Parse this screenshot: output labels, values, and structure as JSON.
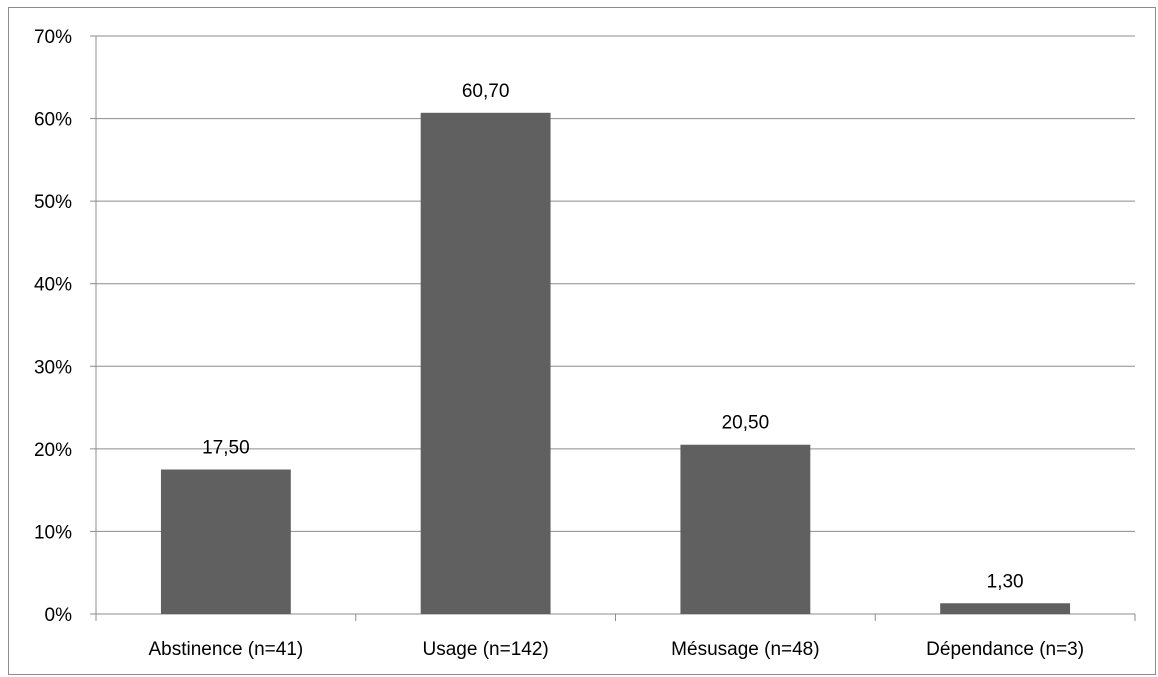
{
  "chart_data": {
    "type": "bar",
    "categories": [
      "Abstinence (n=41)",
      "Usage (n=142)",
      "Mésusage (n=48)",
      "Dépendance (n=3)"
    ],
    "values": [
      17.5,
      60.7,
      20.5,
      1.3
    ],
    "data_labels": [
      "17,50",
      "60,70",
      "20,50",
      "1,30"
    ],
    "ylim": [
      0,
      70
    ],
    "y_ticks": [
      0,
      10,
      20,
      30,
      40,
      50,
      60,
      70
    ],
    "y_tick_labels": [
      "0%",
      "10%",
      "20%",
      "30%",
      "40%",
      "50%",
      "60%",
      "70%"
    ],
    "title": "",
    "xlabel": "",
    "ylabel": "",
    "grid": true,
    "legend": "none",
    "bar_color": "#606060",
    "grid_color": "#8c8c8c"
  }
}
